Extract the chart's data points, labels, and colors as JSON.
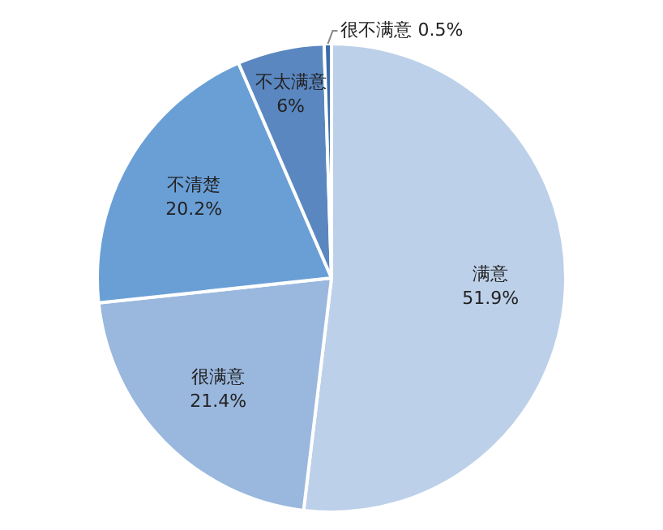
{
  "chart_data": {
    "type": "pie",
    "categories": [
      "满意",
      "很满意",
      "不清楚",
      "不太满意",
      "很不满意"
    ],
    "values": [
      51.9,
      21.4,
      20.2,
      6,
      0.5
    ],
    "colors": [
      "#bdd0e9",
      "#9ab8de",
      "#6a9fd6",
      "#5a87c0",
      "#3a6aaa"
    ],
    "value_labels": [
      "51.9%",
      "21.4%",
      "20.2%",
      "6%",
      "0.5%"
    ],
    "legend": false
  }
}
